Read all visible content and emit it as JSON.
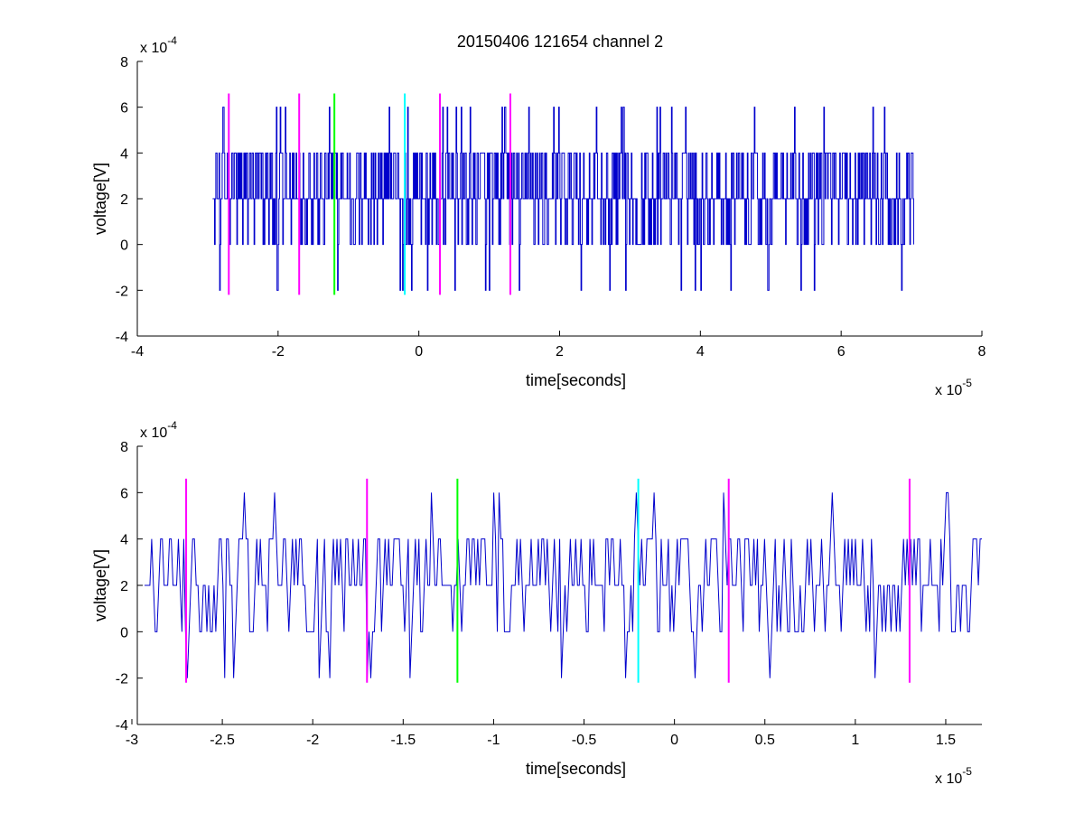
{
  "figure": {
    "title": "20150406 121654 channel 2",
    "background": "#ffffff"
  },
  "colors": {
    "signal": "#0000cc",
    "magenta_marker": "#ff00ff",
    "green_marker": "#00ff00",
    "cyan_marker": "#00ffff",
    "axes": "#000000"
  },
  "chart_data": [
    {
      "type": "line",
      "xlabel": "time[seconds]",
      "ylabel": "voltage[V]",
      "x_exponent_label": "x 10",
      "x_exponent": "-5",
      "y_exponent_label": "x 10",
      "y_exponent": "-4",
      "xlim": [
        -4,
        8
      ],
      "ylim": [
        -4,
        8
      ],
      "x_ticks": [
        -4,
        -2,
        0,
        2,
        4,
        6,
        8
      ],
      "x_tick_labels": [
        "-4",
        "-2",
        "0",
        "2",
        "4",
        "6",
        "8"
      ],
      "y_ticks": [
        -4,
        -2,
        0,
        2,
        4,
        6,
        8
      ],
      "y_tick_labels": [
        "-4",
        "-2",
        "0",
        "2",
        "4",
        "6",
        "8"
      ],
      "signal": {
        "x_range": [
          -2.93,
          7.03
        ],
        "levels": [
          -2,
          0,
          2,
          4,
          6
        ],
        "description_note": "quantized noisy voltage trace between about -2 and 6 (x10^-4 V)"
      },
      "markers": [
        {
          "x": -2.7,
          "y_range": [
            -2.2,
            6.6
          ],
          "color": "magenta"
        },
        {
          "x": -1.7,
          "y_range": [
            -2.2,
            6.6
          ],
          "color": "magenta"
        },
        {
          "x": -1.2,
          "y_range": [
            -2.2,
            6.6
          ],
          "color": "green"
        },
        {
          "x": -0.2,
          "y_range": [
            -2.2,
            6.6
          ],
          "color": "cyan"
        },
        {
          "x": 0.3,
          "y_range": [
            -2.2,
            6.6
          ],
          "color": "magenta"
        },
        {
          "x": 1.3,
          "y_range": [
            -2.2,
            6.6
          ],
          "color": "magenta"
        }
      ]
    },
    {
      "type": "line",
      "xlabel": "time[seconds]",
      "ylabel": "voltage[V]",
      "x_exponent_label": "x 10",
      "x_exponent": "-5",
      "y_exponent_label": "x 10",
      "y_exponent": "-4",
      "xlim": [
        -2.97,
        1.7
      ],
      "ylim": [
        -4,
        8
      ],
      "x_ticks": [
        -3,
        -2.5,
        -2,
        -1.5,
        -1,
        -0.5,
        0,
        0.5,
        1,
        1.5
      ],
      "x_tick_labels": [
        "-3",
        "-2.5",
        "-2",
        "-1.5",
        "-1",
        "-0.5",
        "0",
        "0.5",
        "1",
        "1.5"
      ],
      "y_ticks": [
        -4,
        -2,
        0,
        2,
        4,
        6,
        8
      ],
      "y_tick_labels": [
        "-4",
        "-2",
        "0",
        "2",
        "4",
        "6",
        "8"
      ],
      "signal": {
        "x_range": [
          -2.93,
          1.7
        ],
        "levels": [
          -2,
          0,
          2,
          4,
          6
        ]
      },
      "markers": [
        {
          "x": -2.7,
          "y_range": [
            -2.2,
            6.6
          ],
          "color": "magenta"
        },
        {
          "x": -1.7,
          "y_range": [
            -2.2,
            6.6
          ],
          "color": "magenta"
        },
        {
          "x": -1.2,
          "y_range": [
            -2.2,
            6.6
          ],
          "color": "green"
        },
        {
          "x": -0.2,
          "y_range": [
            -2.2,
            6.6
          ],
          "color": "cyan"
        },
        {
          "x": 0.3,
          "y_range": [
            -2.2,
            6.6
          ],
          "color": "magenta"
        },
        {
          "x": 1.3,
          "y_range": [
            -2.2,
            6.6
          ],
          "color": "magenta"
        }
      ]
    }
  ]
}
